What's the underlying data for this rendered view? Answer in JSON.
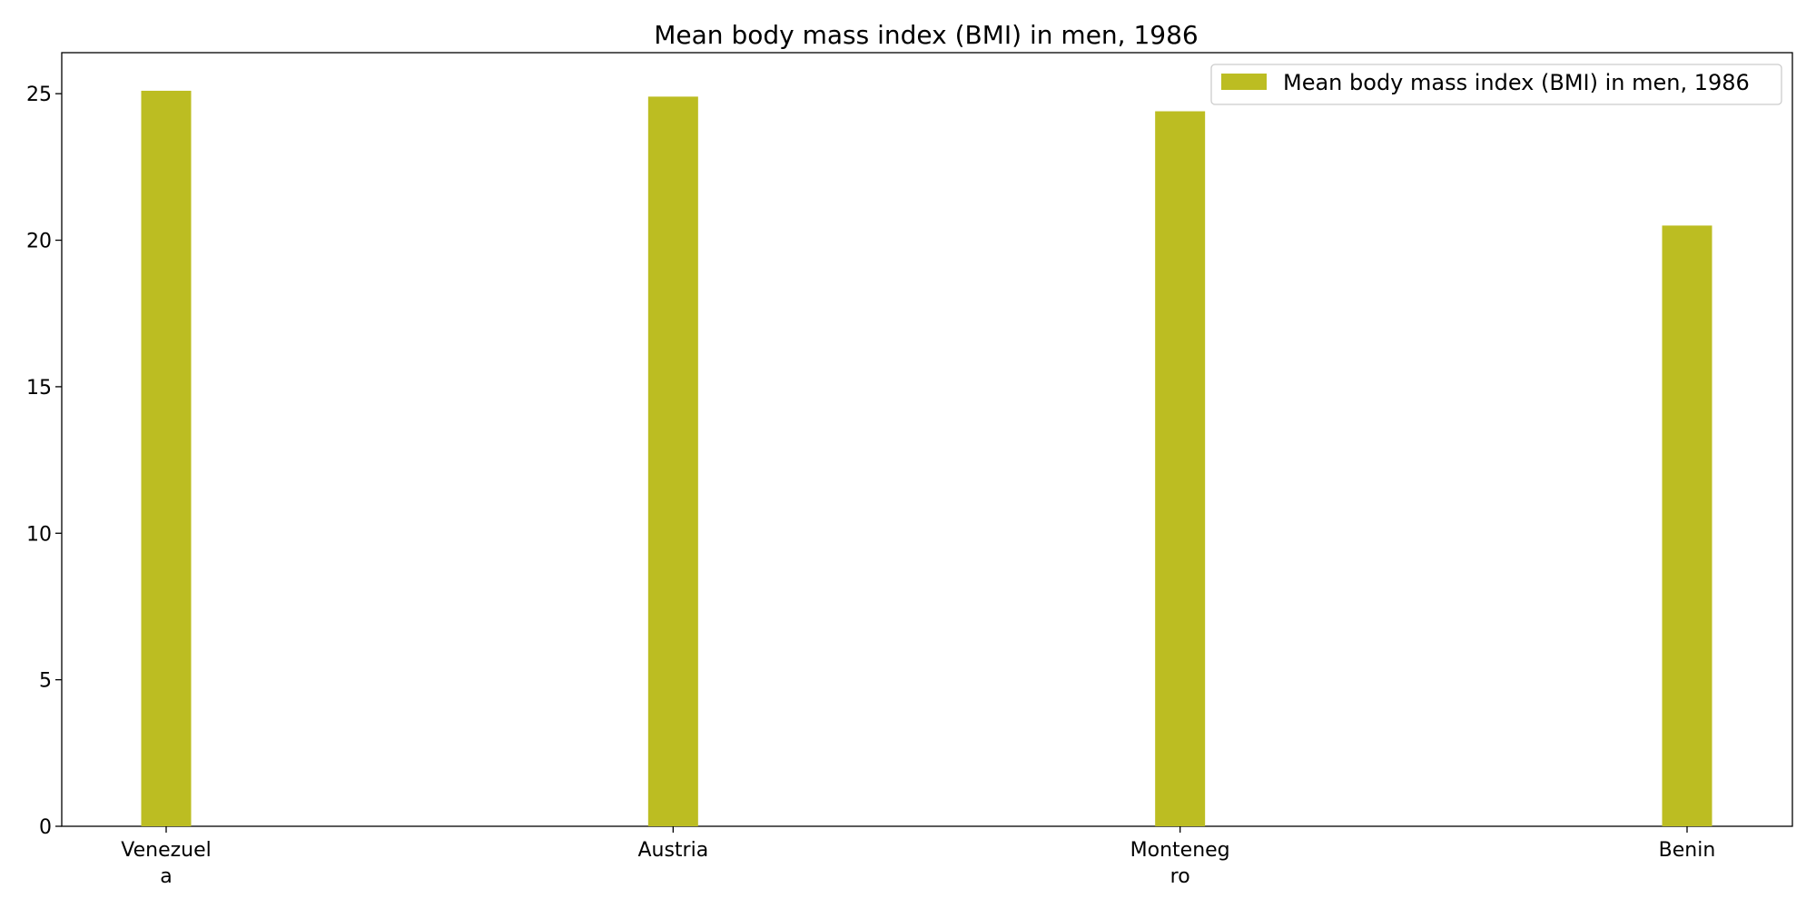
{
  "chart_data": {
    "type": "bar",
    "title": "Mean body mass index (BMI) in men, 1986",
    "categories": [
      "Venezuela",
      "Austria",
      "Montenegro",
      "Benin"
    ],
    "category_label_lines": [
      [
        "Venezuel",
        "a"
      ],
      [
        "Austria"
      ],
      [
        "Monteneg",
        "ro"
      ],
      [
        "Benin"
      ]
    ],
    "series": [
      {
        "name": "Mean body mass index (BMI) in men, 1986",
        "values": [
          25.1,
          24.9,
          24.4,
          20.5
        ]
      }
    ],
    "ylim": [
      0,
      26.4
    ],
    "yticks": [
      0,
      5,
      10,
      15,
      20,
      25
    ],
    "ytick_labels": [
      "0",
      "5",
      "10",
      "15",
      "20",
      "25"
    ],
    "xlabel": "",
    "ylabel": "",
    "grid": false,
    "legend_position": "top-right",
    "colors": {
      "bar": "#bcbd22",
      "axis": "#000000",
      "legend_border": "#cccccc"
    }
  }
}
